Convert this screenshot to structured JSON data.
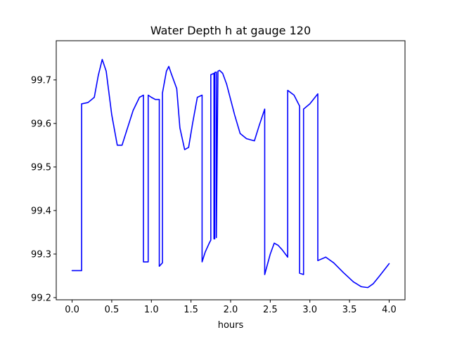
{
  "chart_data": {
    "type": "line",
    "title": "Water Depth h at gauge 120",
    "xlabel": "hours",
    "ylabel": "",
    "xlim": [
      -0.2,
      4.2
    ],
    "ylim": [
      99.195,
      99.79
    ],
    "xticks": [
      0.0,
      0.5,
      1.0,
      1.5,
      2.0,
      2.5,
      3.0,
      3.5,
      4.0
    ],
    "xtick_labels": [
      "0.0",
      "0.5",
      "1.0",
      "1.5",
      "2.0",
      "2.5",
      "3.0",
      "3.5",
      "4.0"
    ],
    "yticks": [
      99.2,
      99.3,
      99.4,
      99.5,
      99.6,
      99.7
    ],
    "ytick_labels": [
      "99.2",
      "99.3",
      "99.4",
      "99.5",
      "99.6",
      "99.7"
    ],
    "grid": false,
    "series": [
      {
        "color": "#0000ff",
        "x": [
          0.0,
          0.12,
          0.12,
          0.2,
          0.28,
          0.33,
          0.38,
          0.43,
          0.5,
          0.57,
          0.63,
          0.7,
          0.77,
          0.85,
          0.9,
          0.9,
          0.96,
          0.96,
          1.0,
          1.05,
          1.1,
          1.1,
          1.14,
          1.14,
          1.19,
          1.22,
          1.25,
          1.28,
          1.32,
          1.36,
          1.42,
          1.47,
          1.52,
          1.58,
          1.64,
          1.64,
          1.68,
          1.73,
          1.75,
          1.75,
          1.79,
          1.79,
          1.8,
          1.8,
          1.82,
          1.82,
          1.84,
          1.86,
          1.9,
          1.95,
          2.05,
          2.12,
          2.2,
          2.3,
          2.36,
          2.43,
          2.43,
          2.5,
          2.55,
          2.6,
          2.65,
          2.72,
          2.72,
          2.8,
          2.87,
          2.87,
          2.92,
          2.92,
          3.0,
          3.1,
          3.1,
          3.2,
          3.3,
          3.42,
          3.55,
          3.65,
          3.73,
          3.8,
          3.88,
          4.0
        ],
        "y": [
          99.262,
          99.262,
          99.645,
          99.648,
          99.66,
          99.71,
          99.747,
          99.72,
          99.62,
          99.55,
          99.55,
          99.59,
          99.63,
          99.66,
          99.665,
          99.282,
          99.282,
          99.665,
          99.66,
          99.655,
          99.655,
          99.272,
          99.28,
          99.67,
          99.72,
          99.731,
          99.715,
          99.7,
          99.68,
          99.59,
          99.54,
          99.545,
          99.6,
          99.66,
          99.665,
          99.282,
          99.305,
          99.325,
          99.332,
          99.712,
          99.715,
          99.335,
          99.335,
          99.717,
          99.718,
          99.338,
          99.72,
          99.722,
          99.715,
          99.69,
          99.62,
          99.577,
          99.565,
          99.56,
          99.595,
          99.633,
          99.253,
          99.3,
          99.325,
          99.32,
          99.31,
          99.293,
          99.676,
          99.665,
          99.64,
          99.256,
          99.253,
          99.633,
          99.645,
          99.668,
          99.285,
          99.293,
          99.28,
          99.258,
          99.236,
          99.225,
          99.223,
          99.232,
          99.25,
          99.278
        ]
      }
    ]
  }
}
